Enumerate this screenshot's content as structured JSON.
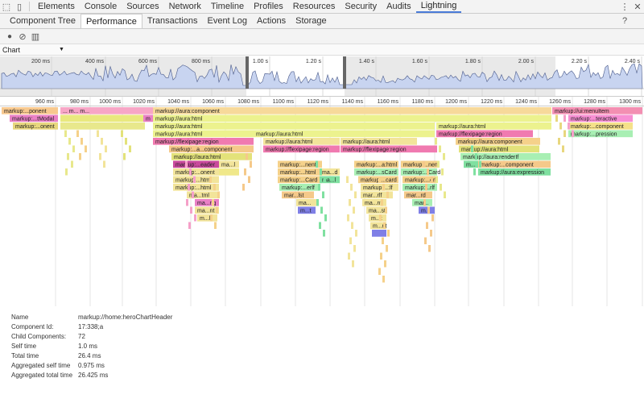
{
  "devtools": {
    "main_tabs": [
      "Elements",
      "Console",
      "Sources",
      "Network",
      "Timeline",
      "Profiles",
      "Resources",
      "Security",
      "Audits",
      "Lightning"
    ],
    "active_main_tab": "Lightning",
    "sub_tabs": [
      "Component Tree",
      "Performance",
      "Transactions",
      "Event Log",
      "Actions",
      "Storage"
    ],
    "active_sub_tab": "Performance",
    "help_label": "?"
  },
  "chart_selector": {
    "value": "Chart"
  },
  "overview": {
    "ticks": [
      {
        "label": "200 ms",
        "x": 42
      },
      {
        "label": "400 ms",
        "x": 109
      },
      {
        "label": "600 ms",
        "x": 175
      },
      {
        "label": "800 ms",
        "x": 241
      },
      {
        "label": "1.00 s",
        "x": 313
      },
      {
        "label": "1.20 s",
        "x": 379
      },
      {
        "label": "1.40 s",
        "x": 445
      },
      {
        "label": "1.60 s",
        "x": 511
      },
      {
        "label": "1.80 s",
        "x": 577
      },
      {
        "label": "2.00 s",
        "x": 643
      },
      {
        "label": "2.20 s",
        "x": 709
      },
      {
        "label": "2.40 s",
        "x": 775
      }
    ]
  },
  "flame": {
    "ticks": [
      {
        "label": "960 ms",
        "x": 47
      },
      {
        "label": "980 ms",
        "x": 90
      },
      {
        "label": "1000 ms",
        "x": 130
      },
      {
        "label": "1020 ms",
        "x": 172
      },
      {
        "label": "1040 ms",
        "x": 215
      },
      {
        "label": "1060 ms",
        "x": 258
      },
      {
        "label": "1080 ms",
        "x": 302
      },
      {
        "label": "1100 ms",
        "x": 345
      },
      {
        "label": "1120 ms",
        "x": 388
      },
      {
        "label": "1140 ms",
        "x": 431
      },
      {
        "label": "1160 ms",
        "x": 475
      },
      {
        "label": "1180 ms",
        "x": 518
      },
      {
        "label": "1200 ms",
        "x": 560
      },
      {
        "label": "1220 ms",
        "x": 604
      },
      {
        "label": "1240 ms",
        "x": 647
      },
      {
        "label": "1260 ms",
        "x": 689
      },
      {
        "label": "1280 ms",
        "x": 732
      },
      {
        "label": "1300 ms",
        "x": 776
      }
    ],
    "blocks": [
      {
        "x": 2,
        "w": 70,
        "d": 0,
        "c": "#f8c98f",
        "t": "markup:...ponent"
      },
      {
        "x": 75,
        "w": 115,
        "d": 0,
        "c": "#f7a6c6",
        "t": "...  m...  m..."
      },
      {
        "x": 190,
        "w": 495,
        "d": 0,
        "c": "#f7d99a",
        "t": "markup://aura:component"
      },
      {
        "x": 686,
        "w": 112,
        "d": 0,
        "c": "#f38fb2",
        "t": "markup://ui:menuItem"
      },
      {
        "x": 12,
        "w": 60,
        "d": 1,
        "c": "#ea80c6",
        "t": "markup:...tModal"
      },
      {
        "x": 75,
        "w": 105,
        "d": 1,
        "c": "#e9e97e",
        "t": ""
      },
      {
        "x": 178,
        "w": 12,
        "d": 1,
        "c": "#ea80c6",
        "t": "m"
      },
      {
        "x": 190,
        "w": 495,
        "d": 1,
        "c": "#ecf28e",
        "t": "markup://aura:html"
      },
      {
        "x": 706,
        "w": 80,
        "d": 1,
        "c": "#f78fd3",
        "t": "markup:...teractive"
      },
      {
        "x": 16,
        "w": 56,
        "d": 2,
        "c": "#e8d77e",
        "t": "markup:...onent"
      },
      {
        "x": 75,
        "w": 105,
        "d": 2,
        "c": "#e8e88c",
        "t": ""
      },
      {
        "x": 190,
        "w": 350,
        "d": 2,
        "c": "#ecf28e",
        "t": "markup://aura:html"
      },
      {
        "x": 542,
        "w": 143,
        "d": 2,
        "c": "#ecf28e",
        "t": "markup://aura:html"
      },
      {
        "x": 706,
        "w": 80,
        "d": 2,
        "c": "#f5e189",
        "t": "markup:...component"
      },
      {
        "x": 190,
        "w": 125,
        "d": 3,
        "c": "#ecf28e",
        "t": "markup://aura:html"
      },
      {
        "x": 315,
        "w": 225,
        "d": 3,
        "c": "#ecf28e",
        "t": "markup://aura:html"
      },
      {
        "x": 542,
        "w": 120,
        "d": 3,
        "c": "#f07ab0",
        "t": "markup://flexipage:region"
      },
      {
        "x": 706,
        "w": 80,
        "d": 3,
        "c": "#a8efb3",
        "t": "markup:...pression"
      },
      {
        "x": 190,
        "w": 125,
        "d": 4,
        "c": "#f07ab0",
        "t": "markup://flexipage:region"
      },
      {
        "x": 327,
        "w": 95,
        "d": 4,
        "c": "#f2e49a",
        "t": "markup://aura:html"
      },
      {
        "x": 423,
        "w": 95,
        "d": 4,
        "c": "#f2e49a",
        "t": "markup://aura:html"
      },
      {
        "x": 566,
        "w": 105,
        "d": 4,
        "c": "#f5d18a",
        "t": "markup://aura:component"
      },
      {
        "x": 210,
        "w": 105,
        "d": 5,
        "c": "#f5c98a",
        "t": "markup:...a...component"
      },
      {
        "x": 327,
        "w": 95,
        "d": 5,
        "c": "#f07ab0",
        "t": "markup://flexipage:region"
      },
      {
        "x": 423,
        "w": 120,
        "d": 5,
        "c": "#f07ab0",
        "t": "markup://flexipage:region"
      },
      {
        "x": 570,
        "w": 100,
        "d": 5,
        "c": "#e3e27a",
        "t": "markup://aura:html"
      },
      {
        "x": 213,
        "w": 100,
        "d": 6,
        "c": "#e3e27a",
        "t": "markup://aura:html"
      },
      {
        "x": 572,
        "w": 112,
        "d": 6,
        "c": "#a8efb3",
        "t": "markup://aura:renderIf"
      },
      {
        "x": 215,
        "w": 57,
        "d": 7,
        "c": "#c9499c",
        "t": "markup:...eader"
      },
      {
        "x": 272,
        "w": 25,
        "d": 7,
        "c": "#f2e49a",
        "t": "ma...l"
      },
      {
        "x": 345,
        "w": 55,
        "d": 7,
        "c": "#f5d18a",
        "t": "markup:...nent"
      },
      {
        "x": 440,
        "w": 55,
        "d": 7,
        "c": "#f5d18a",
        "t": "markup:...a:html"
      },
      {
        "x": 498,
        "w": 45,
        "d": 7,
        "c": "#f5d18a",
        "t": "markup:...nent"
      },
      {
        "x": 576,
        "w": 18,
        "d": 7,
        "c": "#7fe0a0",
        "t": "m..."
      },
      {
        "x": 594,
        "w": 90,
        "d": 7,
        "c": "#f5c98a",
        "t": "markup:...component"
      },
      {
        "x": 215,
        "w": 57,
        "d": 8,
        "c": "#f2e49a",
        "t": "markup:...onent"
      },
      {
        "x": 272,
        "w": 25,
        "d": 8,
        "c": "#f0e88a",
        "t": ""
      },
      {
        "x": 345,
        "w": 55,
        "d": 8,
        "c": "#f5d18a",
        "t": "markup:...html"
      },
      {
        "x": 397,
        "w": 25,
        "d": 8,
        "c": "#f2e49a",
        "t": "ma...d"
      },
      {
        "x": 440,
        "w": 55,
        "d": 8,
        "c": "#a8efb3",
        "t": "markup:...sCard"
      },
      {
        "x": 498,
        "w": 45,
        "d": 8,
        "c": "#a8efb3",
        "t": "markup:...Card"
      },
      {
        "x": 594,
        "w": 90,
        "d": 8,
        "c": "#7fe0a0",
        "t": "markup://aura:expression"
      },
      {
        "x": 215,
        "w": 57,
        "d": 9,
        "c": "#f2e49a",
        "t": "markup:...html"
      },
      {
        "x": 345,
        "w": 55,
        "d": 9,
        "c": "#f5d18a",
        "t": "markup:...Card"
      },
      {
        "x": 397,
        "w": 25,
        "d": 9,
        "c": "#7fe0a0",
        "t": "ma...l"
      },
      {
        "x": 445,
        "w": 50,
        "d": 9,
        "c": "#f5d18a",
        "t": "markup:...card"
      },
      {
        "x": 500,
        "w": 43,
        "d": 9,
        "c": "#f5d18a",
        "t": "markup:...erlf"
      },
      {
        "x": 215,
        "w": 57,
        "d": 10,
        "c": "#f2e49a",
        "t": "markup:...html"
      },
      {
        "x": 347,
        "w": 50,
        "d": 10,
        "c": "#a8efb3",
        "t": "markup:...erlf"
      },
      {
        "x": 448,
        "w": 47,
        "d": 10,
        "c": "#f2e49a",
        "t": "markup:...:lf"
      },
      {
        "x": 500,
        "w": 43,
        "d": 10,
        "c": "#a8efb3",
        "t": "markup:...rlf"
      },
      {
        "x": 232,
        "w": 40,
        "d": 11,
        "c": "#f2e49a",
        "t": "ma...tml"
      },
      {
        "x": 350,
        "w": 40,
        "d": 11,
        "c": "#f5c98a",
        "t": "mar...lst"
      },
      {
        "x": 448,
        "w": 40,
        "d": 11,
        "c": "#f2e49a",
        "t": "mar...rlf"
      },
      {
        "x": 502,
        "w": 35,
        "d": 11,
        "c": "#f5c98a",
        "t": "mar...rd"
      },
      {
        "x": 242,
        "w": 30,
        "d": 12,
        "c": "#ea80c6",
        "t": "ma...ng"
      },
      {
        "x": 368,
        "w": 25,
        "d": 12,
        "c": "#f2e49a",
        "t": "ma..."
      },
      {
        "x": 450,
        "w": 30,
        "d": 12,
        "c": "#f2e49a",
        "t": "ma...nt"
      },
      {
        "x": 512,
        "w": 25,
        "d": 12,
        "c": "#a8efb3",
        "t": "mar..."
      },
      {
        "x": 242,
        "w": 30,
        "d": 13,
        "c": "#f2e49a",
        "t": "ma...nt"
      },
      {
        "x": 370,
        "w": 22,
        "d": 13,
        "c": "#7f7fe6",
        "t": "m...t"
      },
      {
        "x": 455,
        "w": 25,
        "d": 13,
        "c": "#f2e49a",
        "t": "ma...st"
      },
      {
        "x": 520,
        "w": 20,
        "d": 13,
        "c": "#7f7fe6",
        "t": "m..."
      },
      {
        "x": 245,
        "w": 25,
        "d": 14,
        "c": "#f2e49a",
        "t": "m...l"
      },
      {
        "x": 458,
        "w": 22,
        "d": 14,
        "c": "#f2e49a",
        "t": "m...t"
      },
      {
        "x": 460,
        "w": 20,
        "d": 15,
        "c": "#f2e49a",
        "t": "m...nt"
      },
      {
        "x": 462,
        "w": 18,
        "d": 16,
        "c": "#7f7fe6",
        "t": ""
      }
    ]
  },
  "details": [
    {
      "label": "Name",
      "value": "markup://home:heroChartHeader"
    },
    {
      "label": "Component Id:",
      "value": "17:338;a"
    },
    {
      "label": "Child Components:",
      "value": "72"
    },
    {
      "label": "Self time",
      "value": "1.0 ms"
    },
    {
      "label": "Total time",
      "value": "26.4 ms"
    },
    {
      "label": "Aggregated self time",
      "value": "0.975 ms"
    },
    {
      "label": "Aggregated total time",
      "value": "26.425 ms"
    }
  ]
}
